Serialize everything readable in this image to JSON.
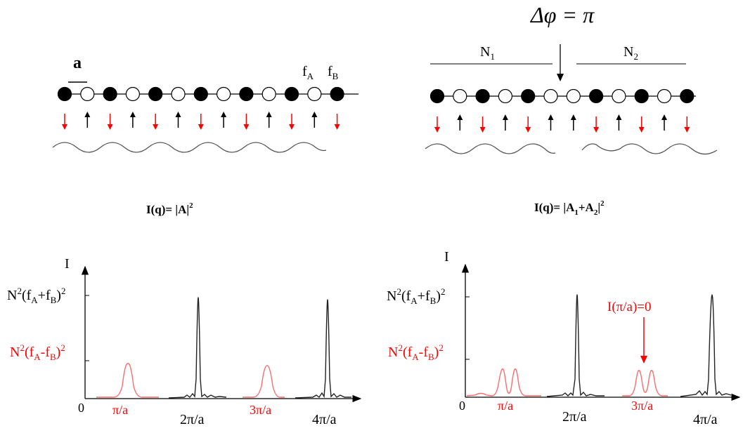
{
  "colors": {
    "black": "#000000",
    "red": "#ff0000",
    "red_peak": "#ff6a6a",
    "gray_line": "#555555",
    "wave": "#555555"
  },
  "left_panel": {
    "lattice_label": "a",
    "fa_label": "f",
    "fa_sub": "A",
    "fb_label": "f",
    "fb_sub": "B",
    "atoms": [
      "filled",
      "open",
      "filled",
      "open",
      "filled",
      "open",
      "filled",
      "open",
      "filled",
      "open",
      "filled",
      "open",
      "filled"
    ],
    "arrows": [
      "down",
      "up",
      "down",
      "up",
      "down",
      "up",
      "down",
      "up",
      "down",
      "up",
      "down",
      "up",
      "down"
    ],
    "formula_prefix": "I(q)= |A|",
    "formula_power": "2"
  },
  "right_panel": {
    "phase_label": "Δφ = π",
    "n1_label": "N",
    "n1_sub": "1",
    "n2_label": "N",
    "n2_sub": "2",
    "atoms": [
      "filled",
      "open",
      "filled",
      "open",
      "filled",
      "open",
      "open",
      "filled",
      "open",
      "filled",
      "open",
      "filled"
    ],
    "arrows": [
      "down",
      "up",
      "down",
      "up",
      "down",
      "up",
      "up",
      "down",
      "up",
      "down",
      "up",
      "down"
    ],
    "formula_prefix": "I(q)= |A",
    "formula_sub1": "1",
    "formula_mid": "+A",
    "formula_sub2": "2",
    "formula_suffix": "|",
    "formula_power": "2"
  },
  "plot_left": {
    "y_axis_label": "I",
    "origin_label": "0",
    "high_label": {
      "n": "N",
      "p1": "2",
      "f1": "(f",
      "a": "A",
      "plus": "+f",
      "b": "B",
      "close": ")",
      "p2": "2"
    },
    "low_label": {
      "n": "N",
      "p1": "2",
      "f1": "(f",
      "a": "A",
      "minus": "-f",
      "b": "B",
      "close": ")",
      "p2": "2"
    },
    "x_ticks": [
      {
        "label": "π/a",
        "color": "red"
      },
      {
        "label": "2π/a",
        "color": "black"
      },
      {
        "label": "3π/a",
        "color": "red"
      },
      {
        "label": "4π/a",
        "color": "black"
      }
    ]
  },
  "plot_right": {
    "y_axis_label": "I",
    "origin_label": "0",
    "high_label": {
      "n": "N",
      "p1": "2",
      "f1": "(f",
      "a": "A",
      "plus": "+f",
      "b": "B",
      "close": ")",
      "p2": "2"
    },
    "low_label": {
      "n": "N",
      "p1": "2",
      "f1": "(f",
      "a": "A",
      "minus": "-f",
      "b": "B",
      "close": ")",
      "p2": "2"
    },
    "annotation": "I(π/a)=0",
    "x_ticks": [
      {
        "label": "π/a",
        "color": "red"
      },
      {
        "label": "2π/a",
        "color": "black"
      },
      {
        "label": "3π/a",
        "color": "red"
      },
      {
        "label": "4π/a",
        "color": "black"
      }
    ]
  }
}
